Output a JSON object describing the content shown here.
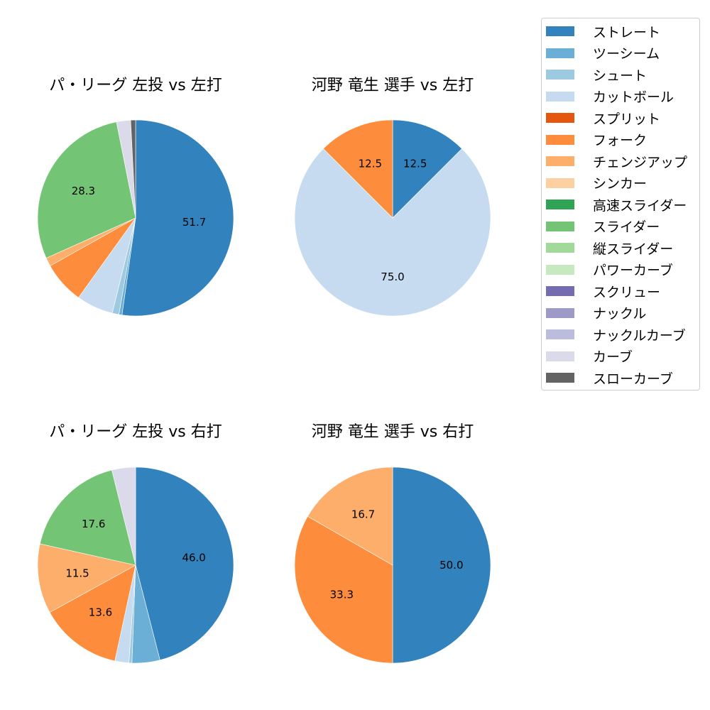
{
  "colors": {
    "ストレート": "#3182bd",
    "ツーシーム": "#6baed6",
    "シュート": "#9ecae1",
    "カットボール": "#c6dbef",
    "スプリット": "#e6550d",
    "フォーク": "#fd8d3c",
    "チェンジアップ": "#fdae6b",
    "シンカー": "#fdd0a2",
    "高速スライダー": "#31a354",
    "スライダー": "#74c476",
    "縦スライダー": "#a1d99b",
    "パワーカーブ": "#c7e9c0",
    "スクリュー": "#756bb1",
    "ナックル": "#9e9ac8",
    "ナックルカーブ": "#bcbddc",
    "カーブ": "#dadaeb",
    "スローカーブ": "#636363"
  },
  "legend": {
    "items": [
      "ストレート",
      "ツーシーム",
      "シュート",
      "カットボール",
      "スプリット",
      "フォーク",
      "チェンジアップ",
      "シンカー",
      "高速スライダー",
      "スライダー",
      "縦スライダー",
      "パワーカーブ",
      "スクリュー",
      "ナックル",
      "ナックルカーブ",
      "カーブ",
      "スローカーブ"
    ]
  },
  "chart_data": [
    {
      "type": "pie",
      "title": "パ・リーグ 左投 vs 左打",
      "slices": [
        {
          "label": "ストレート",
          "value": 51.7,
          "shown_label": "51.7"
        },
        {
          "label": "ツーシーム",
          "value": 0.5
        },
        {
          "label": "シュート",
          "value": 1.1
        },
        {
          "label": "カットボール",
          "value": 6.0
        },
        {
          "label": "フォーク",
          "value": 6.9
        },
        {
          "label": "チェンジアップ",
          "value": 1.4
        },
        {
          "label": "スライダー",
          "value": 28.3,
          "shown_label": "28.3"
        },
        {
          "label": "カーブ",
          "value": 2.3
        },
        {
          "label": "スローカーブ",
          "value": 0.8
        }
      ]
    },
    {
      "type": "pie",
      "title": "河野 竜生 選手 vs 左打",
      "slices": [
        {
          "label": "ストレート",
          "value": 12.5,
          "shown_label": "12.5"
        },
        {
          "label": "カットボール",
          "value": 75.0,
          "shown_label": "75.0"
        },
        {
          "label": "フォーク",
          "value": 12.5,
          "shown_label": "12.5"
        }
      ]
    },
    {
      "type": "pie",
      "title": "パ・リーグ 左投 vs 右打",
      "slices": [
        {
          "label": "ストレート",
          "value": 46.0,
          "shown_label": "46.0"
        },
        {
          "label": "ツーシーム",
          "value": 4.6
        },
        {
          "label": "シュート",
          "value": 0.5
        },
        {
          "label": "カットボール",
          "value": 2.3
        },
        {
          "label": "フォーク",
          "value": 13.6,
          "shown_label": "13.6"
        },
        {
          "label": "チェンジアップ",
          "value": 11.5,
          "shown_label": "11.5"
        },
        {
          "label": "スライダー",
          "value": 17.6,
          "shown_label": "17.6"
        },
        {
          "label": "カーブ",
          "value": 3.9
        }
      ]
    },
    {
      "type": "pie",
      "title": "河野 竜生 選手 vs 右打",
      "slices": [
        {
          "label": "ストレート",
          "value": 50.0,
          "shown_label": "50.0"
        },
        {
          "label": "フォーク",
          "value": 33.3,
          "shown_label": "33.3"
        },
        {
          "label": "チェンジアップ",
          "value": 16.7,
          "shown_label": "16.7"
        }
      ]
    }
  ]
}
